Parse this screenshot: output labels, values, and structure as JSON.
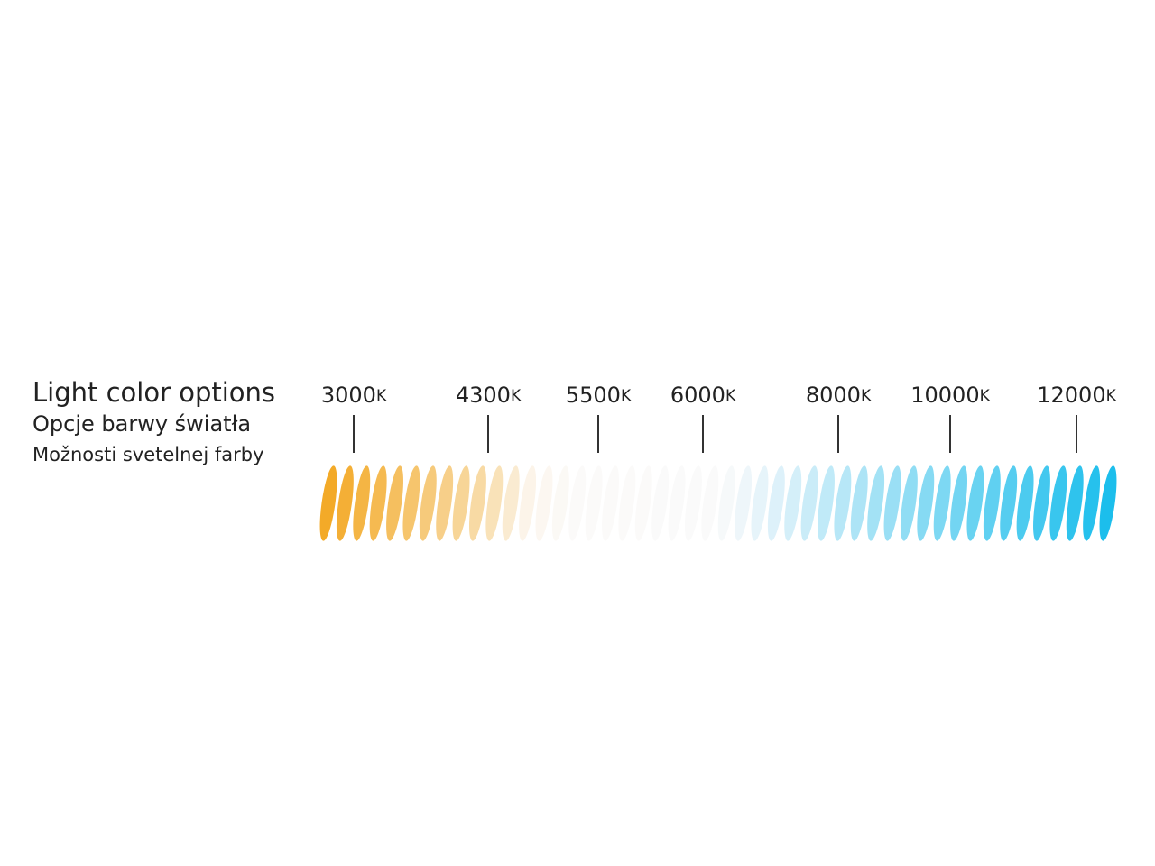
{
  "heading": {
    "title": "Light color options",
    "subtitle_pl": "Opcje barwy światła",
    "subtitle_sk": "Možnosti svetelnej farby"
  },
  "scale": {
    "labels": [
      {
        "number": "3000",
        "unit": "K"
      },
      {
        "number": "4300",
        "unit": "K"
      },
      {
        "number": "5500",
        "unit": "K"
      },
      {
        "number": "6000",
        "unit": "K"
      },
      {
        "number": "8000",
        "unit": "K"
      },
      {
        "number": "10000",
        "unit": "K"
      },
      {
        "number": "12000",
        "unit": "K"
      }
    ]
  }
}
